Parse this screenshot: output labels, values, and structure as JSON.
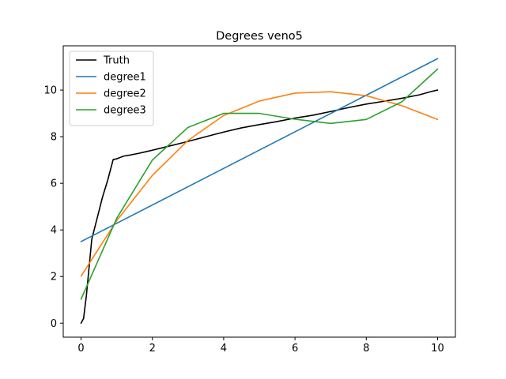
{
  "chart_data": {
    "type": "line",
    "title": "Degrees veno5",
    "xlabel": "",
    "ylabel": "",
    "xlim": [
      -0.5,
      10.5
    ],
    "ylim": [
      -0.6,
      11.9
    ],
    "xticks": [
      0,
      2,
      4,
      6,
      8,
      10
    ],
    "yticks": [
      0,
      2,
      4,
      6,
      8,
      10
    ],
    "grid": false,
    "legend_position": "top-left",
    "series": [
      {
        "name": "Truth",
        "color": "#000000",
        "x": [
          0,
          0.07,
          0.15,
          0.3,
          0.45,
          0.6,
          0.75,
          0.9,
          1.0,
          1.2,
          1.4,
          1.6,
          1.8,
          2.0,
          2.4,
          2.8,
          3.1,
          3.5,
          4.0,
          4.5,
          5.0,
          5.5,
          6.0,
          6.5,
          7.0,
          7.5,
          8.0,
          8.5,
          9.0,
          9.5,
          9.8,
          10.0
        ],
        "y": [
          0.0,
          0.2,
          1.2,
          3.6,
          4.5,
          5.4,
          6.15,
          7.02,
          7.05,
          7.17,
          7.22,
          7.28,
          7.35,
          7.42,
          7.57,
          7.72,
          7.84,
          8.0,
          8.2,
          8.38,
          8.52,
          8.65,
          8.8,
          8.92,
          9.08,
          9.25,
          9.4,
          9.52,
          9.65,
          9.8,
          9.93,
          10.0
        ]
      },
      {
        "name": "degree1",
        "color": "#1f77b4",
        "x": [
          0,
          10
        ],
        "y": [
          3.5,
          11.35
        ]
      },
      {
        "name": "degree2",
        "color": "#ff7f0e",
        "x": [
          0,
          1,
          2,
          3,
          4,
          5,
          6,
          7,
          8,
          9,
          10
        ],
        "y": [
          2.02,
          4.4,
          6.34,
          7.84,
          8.91,
          9.53,
          9.87,
          9.93,
          9.76,
          9.33,
          8.74
        ]
      },
      {
        "name": "degree3",
        "color": "#2ca02c",
        "x": [
          0,
          1,
          2,
          3,
          4,
          5,
          6,
          7,
          8,
          9,
          10
        ],
        "y": [
          1.03,
          4.5,
          7.0,
          8.4,
          9.0,
          9.0,
          8.75,
          8.57,
          8.74,
          9.5,
          10.9
        ]
      }
    ]
  }
}
